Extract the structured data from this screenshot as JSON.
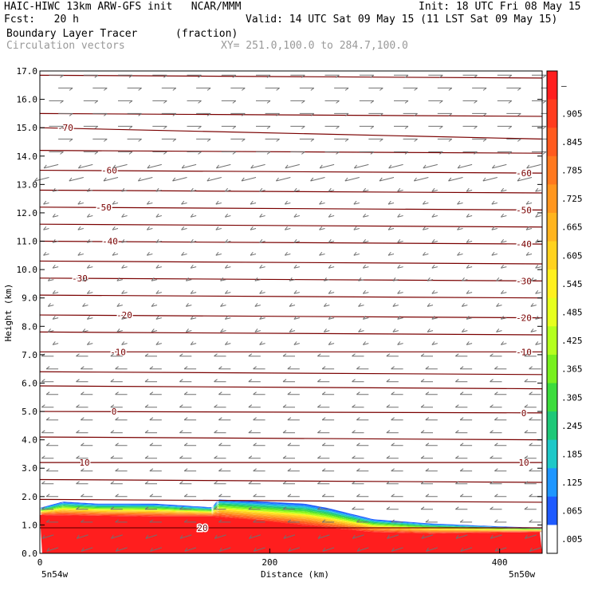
{
  "header": {
    "line1_left": "HAIC-HIWC 13km ARW-GFS init   NCAR/MMM",
    "line1_right": "Init: 18 UTC Fri 08 May 15",
    "line2_left": "Fcst:   20 h",
    "line2_right": "Valid: 14 UTC Sat 09 May 15 (11 LST Sat 09 May 15)",
    "line3_left": "Boundary Layer Tracer",
    "line3_mid": "(fraction)",
    "line4_left": "Circulation vectors",
    "line4_mid": "XY= 251.0,100.0 to 284.7,100.0"
  },
  "chart_data": {
    "type": "heatmap",
    "title": "Boundary Layer Tracer",
    "units": "(fraction)",
    "ylabel": "Height (km)",
    "xlabel": "Distance (km)",
    "xlim": [
      0,
      437
    ],
    "ylim": [
      0,
      17
    ],
    "y_ticks": [
      "0.0",
      "1.0",
      "2.0",
      "3.0",
      "4.0",
      "5.0",
      "6.0",
      "7.0",
      "8.0",
      "9.0",
      "10.0",
      "11.0",
      "12.0",
      "13.0",
      "14.0",
      "15.0",
      "16.0",
      "17.0"
    ],
    "x_ticks": [
      "0",
      "200",
      "400"
    ],
    "x_end_labels": {
      "left": "5n54w",
      "right": "5n50w"
    },
    "colorbar_labels": [
      "–",
      ".905",
      ".845",
      ".785",
      ".725",
      ".665",
      ".605",
      ".545",
      ".485",
      ".425",
      ".365",
      ".305",
      ".245",
      ".185",
      ".125",
      ".065",
      ".005"
    ],
    "colorbar_colors": [
      "#ff1e1e",
      "#ff3c1e",
      "#ff5a1e",
      "#ff781e",
      "#ff961e",
      "#ffb41e",
      "#ffd21e",
      "#fff01e",
      "#e6ff1e",
      "#b4ff1e",
      "#78f01e",
      "#3cdc3c",
      "#1ec878",
      "#1ec8c8",
      "#1e96ff",
      "#1e5aff",
      "#ffffff"
    ],
    "tracer_top_km": [
      [
        0,
        1.6
      ],
      [
        20,
        1.82
      ],
      [
        50,
        1.75
      ],
      [
        100,
        1.75
      ],
      [
        150,
        1.62
      ],
      [
        155,
        1.9
      ],
      [
        230,
        1.75
      ],
      [
        250,
        1.6
      ],
      [
        290,
        1.2
      ],
      [
        340,
        1.05
      ],
      [
        400,
        0.95
      ],
      [
        437,
        0.9
      ]
    ],
    "tracer_red_top_km": [
      [
        0,
        1.35
      ],
      [
        100,
        1.3
      ],
      [
        150,
        1.3
      ],
      [
        180,
        1.2
      ],
      [
        230,
        1.0
      ],
      [
        290,
        0.75
      ],
      [
        340,
        0.7
      ],
      [
        437,
        0.75
      ]
    ],
    "temperature_contours": [
      {
        "label": "-70",
        "y_left": 15.0,
        "y_right": 14.6
      },
      {
        "label": "-60",
        "y_left": 13.5,
        "y_right": 13.4
      },
      {
        "label": "-50",
        "y_left": 12.2,
        "y_right": 12.1
      },
      {
        "label": "-40",
        "y_left": 11.0,
        "y_right": 10.9
      },
      {
        "label": "-30",
        "y_left": 9.7,
        "y_right": 9.6
      },
      {
        "label": "-20",
        "y_left": 8.4,
        "y_right": 8.3
      },
      {
        "label": "-10",
        "y_left": 7.1,
        "y_right": 7.1
      },
      {
        "label": "0",
        "y_left": 5.0,
        "y_right": 4.95
      },
      {
        "label": "10",
        "y_left": 3.2,
        "y_right": 3.2
      },
      {
        "label": "20",
        "y_left": 0.9,
        "y_right": 0.9
      }
    ],
    "contour_labels_right": [
      "-60",
      "-50",
      "-40",
      "-30",
      "-20",
      "-10",
      "0",
      "10"
    ],
    "extra_contour_levels_km": [
      16.85,
      15.5,
      14.2,
      12.8,
      11.6,
      10.3,
      9.1,
      7.8,
      6.4,
      5.9,
      4.1,
      2.6,
      1.9
    ],
    "wind_layers": [
      {
        "z_min": 14.0,
        "z_max": 17.0,
        "direction": "east"
      },
      {
        "z_min": 7.0,
        "z_max": 14.0,
        "direction": "west-southwest"
      },
      {
        "z_min": 1.0,
        "z_max": 7.0,
        "direction": "west"
      },
      {
        "z_min": 0.0,
        "z_max": 1.0,
        "direction": "west-down"
      }
    ]
  }
}
